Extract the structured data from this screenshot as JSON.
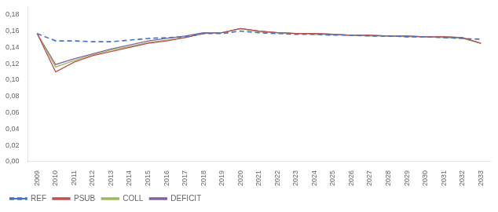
{
  "chart_data": {
    "type": "line",
    "x": [
      2009,
      2010,
      2011,
      2012,
      2013,
      2014,
      2015,
      2016,
      2017,
      2018,
      2019,
      2020,
      2021,
      2022,
      2023,
      2024,
      2025,
      2026,
      2027,
      2028,
      2029,
      2030,
      2031,
      2032,
      2033
    ],
    "series": [
      {
        "name": "REF",
        "color": "#4472C4",
        "line_style": "dashed",
        "values": [
          0.157,
          0.148,
          0.148,
          0.147,
          0.147,
          0.149,
          0.151,
          0.152,
          0.153,
          0.157,
          0.157,
          0.16,
          0.158,
          0.157,
          0.156,
          0.156,
          0.155,
          0.155,
          0.154,
          0.154,
          0.153,
          0.153,
          0.152,
          0.151,
          0.15
        ]
      },
      {
        "name": "PSUB",
        "color": "#C0504D",
        "line_style": "solid",
        "values": [
          0.157,
          0.11,
          0.122,
          0.13,
          0.135,
          0.14,
          0.145,
          0.148,
          0.152,
          0.157,
          0.158,
          0.163,
          0.16,
          0.158,
          0.157,
          0.157,
          0.156,
          0.155,
          0.155,
          0.154,
          0.154,
          0.153,
          0.153,
          0.152,
          0.145
        ]
      },
      {
        "name": "COLL",
        "color": "#9BBB59",
        "line_style": "solid",
        "values": [
          0.157,
          0.116,
          0.124,
          0.131,
          0.137,
          0.141,
          0.146,
          0.149,
          0.152,
          0.157,
          0.158,
          0.163,
          0.159,
          0.158,
          0.157,
          0.156,
          0.156,
          0.155,
          0.154,
          0.154,
          0.153,
          0.153,
          0.152,
          0.151,
          0.145
        ]
      },
      {
        "name": "DEFICIT",
        "color": "#8064A2",
        "line_style": "solid",
        "values": [
          0.157,
          0.119,
          0.126,
          0.132,
          0.138,
          0.143,
          0.148,
          0.151,
          0.154,
          0.158,
          0.158,
          0.163,
          0.16,
          0.158,
          0.157,
          0.157,
          0.156,
          0.155,
          0.155,
          0.154,
          0.154,
          0.153,
          0.153,
          0.152,
          0.145
        ]
      }
    ],
    "xlim": [
      2008.5,
      2033.5
    ],
    "xticks": [
      2009,
      2010,
      2011,
      2012,
      2013,
      2014,
      2015,
      2016,
      2017,
      2018,
      2019,
      2020,
      2021,
      2022,
      2023,
      2024,
      2025,
      2026,
      2027,
      2028,
      2029,
      2030,
      2031,
      2032,
      2033
    ],
    "ylim": [
      0.0,
      0.19
    ],
    "yticks": [
      {
        "value": 0.0,
        "label": "0,00"
      },
      {
        "value": 0.02,
        "label": "0,02"
      },
      {
        "value": 0.04,
        "label": "0,04"
      },
      {
        "value": 0.06,
        "label": "0,06"
      },
      {
        "value": 0.08,
        "label": "0,08"
      },
      {
        "value": 0.1,
        "label": "0,10"
      },
      {
        "value": 0.12,
        "label": "0,12"
      },
      {
        "value": 0.14,
        "label": "0,14"
      },
      {
        "value": 0.16,
        "label": "0,16"
      },
      {
        "value": 0.18,
        "label": "0,18"
      }
    ],
    "grid": false,
    "legend": "lower left"
  }
}
